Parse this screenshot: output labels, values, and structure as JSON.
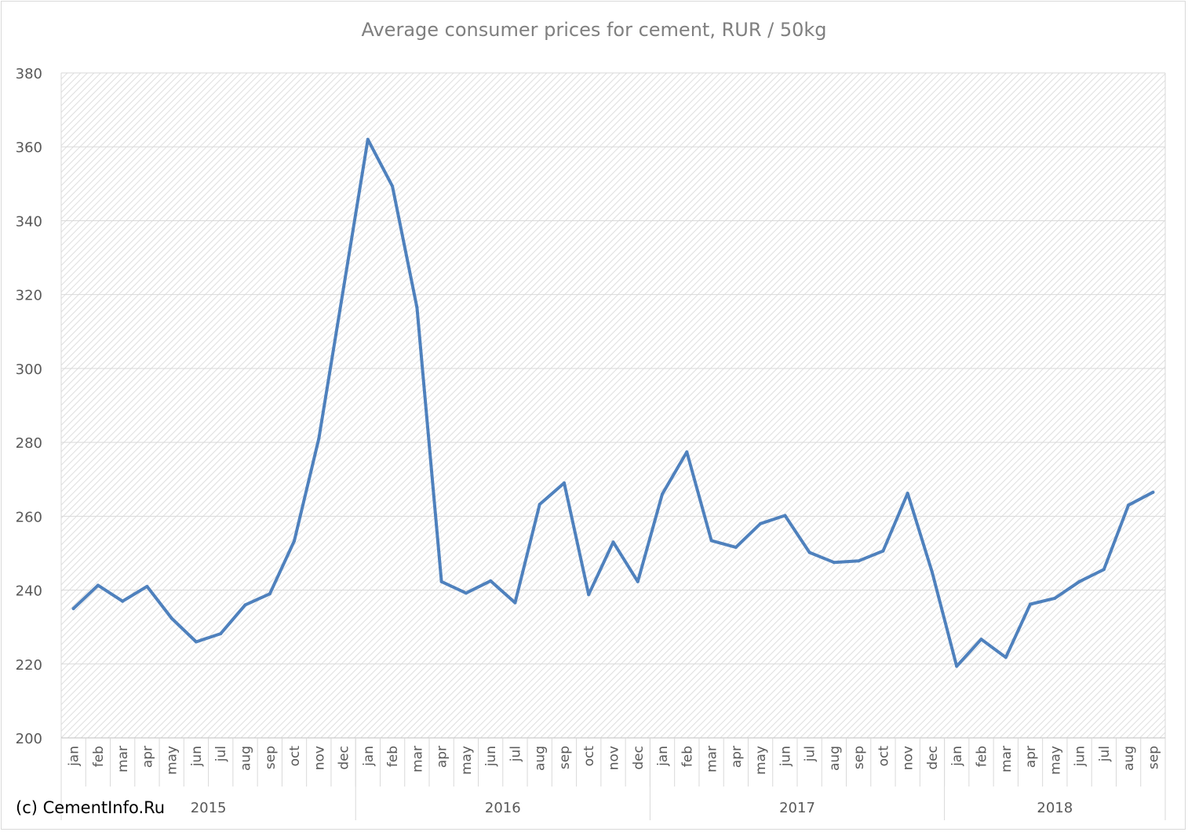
{
  "chart_data": {
    "type": "line",
    "title": "Average consumer prices for cement, RUR / 50kg",
    "xlabel": "",
    "ylabel": "",
    "ylim": [
      200,
      380
    ],
    "yticks": [
      200,
      220,
      240,
      260,
      280,
      300,
      320,
      340,
      360,
      380
    ],
    "grid": true,
    "legend": "none",
    "groups": [
      {
        "label": "2015",
        "months": 12
      },
      {
        "label": "2016",
        "months": 12
      },
      {
        "label": "2017",
        "months": 12
      },
      {
        "label": "2018",
        "months": 9
      }
    ],
    "categories": [
      "jan",
      "feb",
      "mar",
      "apr",
      "may",
      "jun",
      "jul",
      "aug",
      "sep",
      "oct",
      "nov",
      "dec",
      "jan",
      "feb",
      "mar",
      "apr",
      "may",
      "jun",
      "jul",
      "aug",
      "sep",
      "oct",
      "nov",
      "dec",
      "jan",
      "feb",
      "mar",
      "apr",
      "may",
      "jun",
      "jul",
      "aug",
      "sep",
      "oct",
      "nov",
      "dec",
      "jan",
      "feb",
      "mar",
      "apr",
      "may",
      "jun",
      "jul",
      "aug",
      "sep"
    ],
    "series": [
      {
        "color": "#4f81bd",
        "values": [
          235,
          241.3,
          237,
          241,
          232.4,
          226,
          228.2,
          236,
          239,
          253.3,
          281,
          321.5,
          362,
          349.3,
          316.5,
          242.3,
          239.2,
          242.5,
          236.6,
          263.2,
          269,
          238.8,
          253,
          242.3,
          266,
          277.4,
          253.4,
          251.6,
          258,
          260.2,
          250.2,
          247.5,
          247.9,
          250.6,
          266.2,
          244.8,
          219.4,
          226.7,
          221.8,
          236.2,
          237.8,
          242.3,
          245.6,
          263,
          266.5
        ]
      }
    ]
  },
  "footer": {
    "copyright": "(c) CementInfo.Ru"
  }
}
